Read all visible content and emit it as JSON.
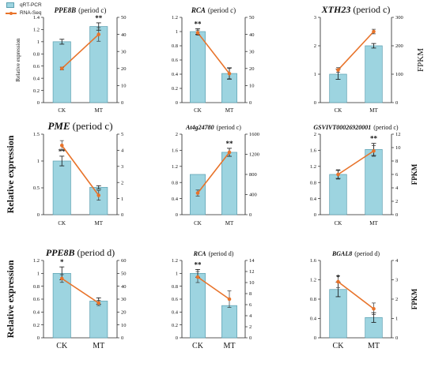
{
  "style": {
    "bar_fill": "#9dd4e0",
    "bar_stroke": "#5a9fb0",
    "line_color": "#e8732a",
    "error_color": "#111111"
  },
  "legend": {
    "bar_label": "qRT-PCR",
    "line_label": "RNA-Seq"
  },
  "axis_labels": {
    "left": "Relative expression",
    "right": "FPKM"
  },
  "chart_data": [
    {
      "type": "bar",
      "title_gene": "PPE8B",
      "title_suffix": "(period c)",
      "categories": [
        "CK",
        "MT"
      ],
      "bar_values": [
        1.0,
        1.25
      ],
      "bar_errors": [
        0.04,
        0.06
      ],
      "line_values": [
        20,
        40
      ],
      "line_errors": [
        0.8,
        4
      ],
      "significance": [
        "",
        "**"
      ],
      "ylim_left": [
        0,
        1.4
      ],
      "left_ticks": [
        "0",
        "0.2",
        "0.4",
        "0.6",
        "0.8",
        "1",
        "1.2",
        "1.4"
      ],
      "ylim_right": [
        0,
        50
      ],
      "right_ticks": [
        "0",
        "10",
        "20",
        "30",
        "40",
        "50"
      ],
      "ylabel_left": "Relative expression",
      "ylabel_right": ""
    },
    {
      "type": "bar",
      "title_gene": "RCA",
      "title_suffix": "(period c)",
      "categories": [
        "CK",
        "MT"
      ],
      "bar_values": [
        1.0,
        0.41
      ],
      "bar_errors": [
        0.04,
        0.08
      ],
      "line_values": [
        41,
        17
      ],
      "line_errors": [
        1.5,
        3
      ],
      "significance": [
        "**",
        ""
      ],
      "ylim_left": [
        0,
        1.2
      ],
      "left_ticks": [
        "0",
        "0.2",
        "0.4",
        "0.6",
        "0.8",
        "1",
        "1.2"
      ],
      "ylim_right": [
        0,
        50
      ],
      "right_ticks": [
        "0",
        "10",
        "20",
        "30",
        "40",
        "50"
      ],
      "ylabel_left": "",
      "ylabel_right": ""
    },
    {
      "type": "bar",
      "title_gene": "XTH23",
      "title_suffix": "(period c)",
      "categories": [
        "CK",
        "MT"
      ],
      "bar_values": [
        1.0,
        2.0
      ],
      "bar_errors": [
        0.18,
        0.08
      ],
      "line_values": [
        115,
        250
      ],
      "line_errors": [
        8,
        8
      ],
      "significance": [
        "",
        ""
      ],
      "ylim_left": [
        0,
        3
      ],
      "left_ticks": [
        "0",
        "1",
        "2",
        "3"
      ],
      "ylim_right": [
        0,
        300
      ],
      "right_ticks": [
        "0",
        "100",
        "200",
        "300"
      ],
      "ylabel_left": "",
      "ylabel_right": "FPKM"
    },
    {
      "type": "bar",
      "title_gene": "PME",
      "title_suffix": "(period c)",
      "categories": [
        "CK",
        "MT"
      ],
      "bar_values": [
        1.0,
        0.51
      ],
      "bar_errors": [
        0.09,
        0.03
      ],
      "line_values": [
        4.3,
        1.2
      ],
      "line_errors": [
        0.3,
        0.3
      ],
      "significance": [
        "**",
        ""
      ],
      "ylim_left": [
        0,
        1.5
      ],
      "left_ticks": [
        "0",
        "0.5",
        "1",
        "1.5"
      ],
      "ylim_right": [
        0,
        5
      ],
      "right_ticks": [
        "0",
        "1",
        "2",
        "3",
        "4",
        "5"
      ],
      "ylabel_left": "Relative expression",
      "ylabel_right": ""
    },
    {
      "type": "bar",
      "title_gene": "At4g24780",
      "title_suffix": "(period c)",
      "categories": [
        "CK",
        "MT"
      ],
      "bar_values": [
        1.0,
        1.55
      ],
      "bar_errors": [
        0.0,
        0.1
      ],
      "line_values": [
        430,
        1240
      ],
      "line_errors": [
        60,
        80
      ],
      "significance": [
        "",
        "**"
      ],
      "ylim_left": [
        0,
        2
      ],
      "left_ticks": [
        "0",
        "0.4",
        "0.8",
        "1.2",
        "1.6",
        "2"
      ],
      "ylim_right": [
        0,
        1600
      ],
      "right_ticks": [
        "0",
        "400",
        "800",
        "1200",
        "1600"
      ],
      "ylabel_left": "",
      "ylabel_right": ""
    },
    {
      "type": "bar",
      "title_gene": "GSVIVT00026920001",
      "title_suffix": "(period c)",
      "categories": [
        "CK",
        "MT"
      ],
      "bar_values": [
        1.0,
        1.62
      ],
      "bar_errors": [
        0.1,
        0.15
      ],
      "line_values": [
        6,
        9.5
      ],
      "line_errors": [
        0.7,
        0.8
      ],
      "significance": [
        "",
        "**"
      ],
      "ylim_left": [
        0,
        2
      ],
      "left_ticks": [
        "0",
        "0.4",
        "0.8",
        "1.2",
        "1.6",
        "2"
      ],
      "ylim_right": [
        0,
        12
      ],
      "right_ticks": [
        "0",
        "2",
        "4",
        "6",
        "8",
        "10",
        "12"
      ],
      "ylabel_left": "",
      "ylabel_right": "FPKM"
    },
    {
      "type": "bar",
      "title_gene": "PPE8B",
      "title_suffix": "(period d)",
      "categories": [
        "CK",
        "MT"
      ],
      "bar_values": [
        1.0,
        0.57
      ],
      "bar_errors": [
        0.1,
        0.05
      ],
      "line_values": [
        46,
        27
      ],
      "line_errors": [
        3,
        2
      ],
      "significance": [
        "*",
        ""
      ],
      "ylim_left": [
        0,
        1.2
      ],
      "left_ticks": [
        "0",
        "0.2",
        "0.4",
        "0.6",
        "0.8",
        "1",
        "1.2"
      ],
      "ylim_right": [
        0,
        60
      ],
      "right_ticks": [
        "0",
        "10",
        "20",
        "30",
        "40",
        "50",
        "60"
      ],
      "ylabel_left": "Relative expression",
      "ylabel_right": ""
    },
    {
      "type": "bar",
      "title_gene": "RCA",
      "title_suffix": "(period d)",
      "categories": [
        "CK",
        "MT"
      ],
      "bar_values": [
        1.0,
        0.5
      ],
      "bar_errors": [
        0.06,
        0.0
      ],
      "line_values": [
        11,
        7
      ],
      "line_errors": [
        1,
        1.5
      ],
      "significance": [
        "**",
        ""
      ],
      "ylim_left": [
        0,
        1.2
      ],
      "left_ticks": [
        "0",
        "0.2",
        "0.4",
        "0.6",
        "0.8",
        "1",
        "1.2"
      ],
      "ylim_right": [
        0,
        14
      ],
      "right_ticks": [
        "0",
        "2",
        "4",
        "6",
        "8",
        "10",
        "12",
        "14"
      ],
      "ylabel_left": "",
      "ylabel_right": ""
    },
    {
      "type": "bar",
      "title_gene": "BGAL8",
      "title_suffix": "(period d)",
      "categories": [
        "CK",
        "MT"
      ],
      "bar_values": [
        1.0,
        0.42
      ],
      "bar_errors": [
        0.15,
        0.1
      ],
      "line_values": [
        2.9,
        1.5
      ],
      "line_errors": [
        0.3,
        0.3
      ],
      "significance": [
        "*",
        ""
      ],
      "ylim_left": [
        0,
        1.6
      ],
      "left_ticks": [
        "0",
        "0.4",
        "0.8",
        "1.2",
        "1.6"
      ],
      "ylim_right": [
        0,
        4
      ],
      "right_ticks": [
        "0",
        "1",
        "2",
        "3",
        "4"
      ],
      "ylabel_left": "",
      "ylabel_right": "FPKM"
    }
  ]
}
